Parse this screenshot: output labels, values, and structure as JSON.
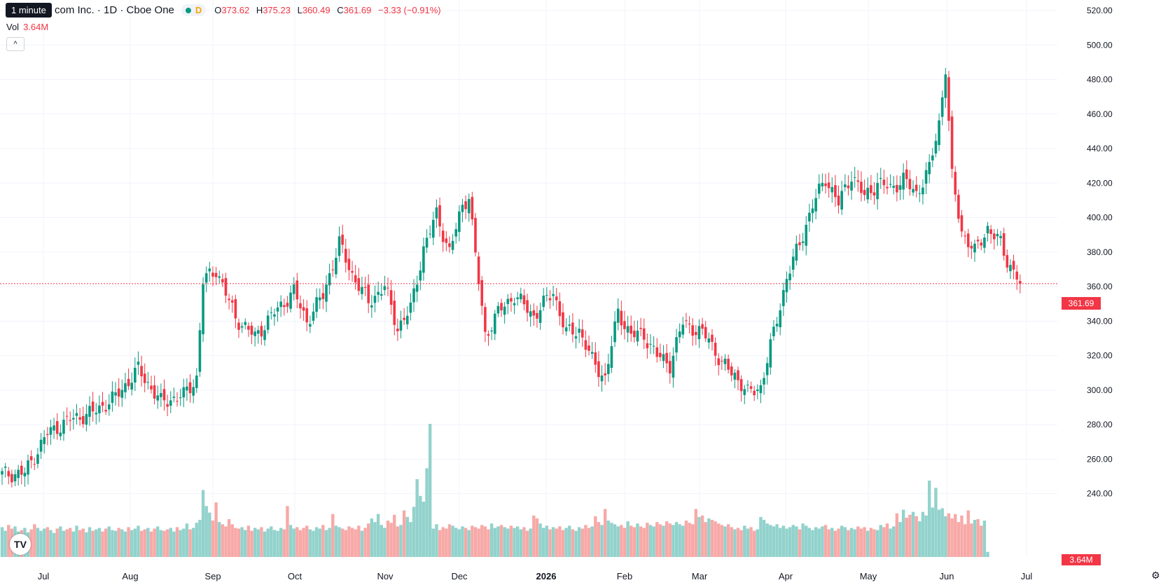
{
  "legend": {
    "symbol_title": "Broadcom Inc. · 1D · Cboe One",
    "symbol_visible": "com Inc. · 1D · Cboe One",
    "tooltip": "1 minute",
    "d_flag": "D",
    "open_label": "O",
    "open": "373.62",
    "high_label": "H",
    "high": "375.23",
    "low_label": "L",
    "low": "360.49",
    "close_label": "C",
    "close": "361.69",
    "change": "−3.33 (−0.91%)",
    "volume_label": "Vol",
    "volume": "3.64M",
    "collapse_glyph": "^"
  },
  "price_tag": "361.69",
  "volume_tag": "3.64M",
  "logo_text": "TV",
  "settings_icon": "gear-icon",
  "colors": {
    "up": "#089981",
    "down": "#f23645",
    "up_vol": "#92d2cc",
    "down_vol": "#f7a9a7",
    "grid": "#f0f3fa"
  },
  "chart_data": {
    "type": "candlestick",
    "y_ticks": [
      "520.00",
      "500.00",
      "480.00",
      "460.00",
      "440.00",
      "420.00",
      "400.00",
      "380.00",
      "360.00",
      "340.00",
      "320.00",
      "300.00",
      "280.00",
      "260.00",
      "240.00"
    ],
    "ylim": [
      226,
      522
    ],
    "x_ticks": [
      "Jul",
      "Aug",
      "Sep",
      "Oct",
      "Nov",
      "Dec",
      "2026",
      "Feb",
      "Mar",
      "Apr",
      "May",
      "Jun",
      "Jul"
    ],
    "last_price": 361.69,
    "anchors": [
      [
        0,
        251
      ],
      [
        7,
        252
      ],
      [
        14,
        275
      ],
      [
        21,
        283
      ],
      [
        28,
        287
      ],
      [
        35,
        296
      ],
      [
        42,
        312
      ],
      [
        49,
        293
      ],
      [
        56,
        297
      ],
      [
        60,
        307
      ],
      [
        62,
        363
      ],
      [
        66,
        370
      ],
      [
        72,
        342
      ],
      [
        78,
        331
      ],
      [
        84,
        345
      ],
      [
        90,
        357
      ],
      [
        94,
        340
      ],
      [
        99,
        355
      ],
      [
        104,
        385
      ],
      [
        108,
        367
      ],
      [
        113,
        351
      ],
      [
        118,
        360
      ],
      [
        122,
        336
      ],
      [
        126,
        347
      ],
      [
        130,
        382
      ],
      [
        134,
        402
      ],
      [
        138,
        380
      ],
      [
        142,
        407
      ],
      [
        144,
        413
      ],
      [
        146,
        378
      ],
      [
        149,
        332
      ],
      [
        153,
        345
      ],
      [
        158,
        355
      ],
      [
        164,
        343
      ],
      [
        170,
        357
      ],
      [
        174,
        333
      ],
      [
        178,
        335
      ],
      [
        182,
        317
      ],
      [
        186,
        307
      ],
      [
        190,
        345
      ],
      [
        194,
        332
      ],
      [
        198,
        332
      ],
      [
        202,
        320
      ],
      [
        206,
        315
      ],
      [
        210,
        339
      ],
      [
        214,
        335
      ],
      [
        218,
        330
      ],
      [
        222,
        315
      ],
      [
        226,
        309
      ],
      [
        230,
        298
      ],
      [
        234,
        302
      ],
      [
        238,
        333
      ],
      [
        242,
        365
      ],
      [
        246,
        385
      ],
      [
        250,
        407
      ],
      [
        254,
        423
      ],
      [
        258,
        408
      ],
      [
        262,
        425
      ],
      [
        266,
        412
      ],
      [
        270,
        420
      ],
      [
        274,
        417
      ],
      [
        278,
        422
      ],
      [
        282,
        414
      ],
      [
        286,
        428
      ],
      [
        289,
        455
      ],
      [
        291,
        487
      ],
      [
        293,
        423
      ],
      [
        296,
        392
      ],
      [
        300,
        380
      ],
      [
        304,
        394
      ],
      [
        308,
        385
      ],
      [
        310,
        375
      ],
      [
        313,
        366
      ],
      [
        314,
        362
      ]
    ],
    "volume_series": [
      4.1,
      3.6,
      4.4,
      3.9,
      4.2,
      3.5,
      3.7,
      4.0,
      3.4,
      3.8,
      4.5,
      4.0,
      3.6,
      3.9,
      4.1,
      3.7,
      3.3,
      3.9,
      4.2,
      3.6,
      3.8,
      4.0,
      3.5,
      4.3,
      3.7,
      3.9,
      3.4,
      4.1,
      3.6,
      3.8,
      4.0,
      3.5,
      3.9,
      4.2,
      3.7,
      3.6,
      4.0,
      3.8,
      3.5,
      4.1,
      3.7,
      3.9,
      4.3,
      3.6,
      3.8,
      4.0,
      3.5,
      3.9,
      4.2,
      3.7,
      3.6,
      3.8,
      4.0,
      3.5,
      4.1,
      3.7,
      3.9,
      4.6,
      3.8,
      4.0,
      4.7,
      5.1,
      9.2,
      7.0,
      6.1,
      5.0,
      7.5,
      4.8,
      4.5,
      4.2,
      5.2,
      4.5,
      4.0,
      3.9,
      4.1,
      3.7,
      4.3,
      3.6,
      4.0,
      3.8,
      4.1,
      3.5,
      3.9,
      4.2,
      3.7,
      3.6,
      4.0,
      3.8,
      7.0,
      4.4,
      3.9,
      4.1,
      3.7,
      4.0,
      4.3,
      3.8,
      3.6,
      4.1,
      3.9,
      4.4,
      3.7,
      4.0,
      5.9,
      4.3,
      4.1,
      3.9,
      3.7,
      4.2,
      4.0,
      3.8,
      4.3,
      3.6,
      4.0,
      4.6,
      5.3,
      4.8,
      5.9,
      4.4,
      4.0,
      5.0,
      4.7,
      5.8,
      4.2,
      4.4,
      6.4,
      5.5,
      4.8,
      6.9,
      10.7,
      8.4,
      7.6,
      12.2,
      18.3,
      3.9,
      4.5,
      3.7,
      4.1,
      3.9,
      4.5,
      4.3,
      4.0,
      3.8,
      4.2,
      4.0,
      3.7,
      4.3,
      4.1,
      3.9,
      4.4,
      4.2,
      3.8,
      4.6,
      4.0,
      4.2,
      4.4,
      4.1,
      3.9,
      4.3,
      4.0,
      4.2,
      3.8,
      4.1,
      3.6,
      3.9,
      5.7,
      5.3,
      4.6,
      4.0,
      4.3,
      3.8,
      4.1,
      3.9,
      4.2,
      3.7,
      4.0,
      4.3,
      3.8,
      3.6,
      4.1,
      3.9,
      4.4,
      4.0,
      4.2,
      5.6,
      4.8,
      4.4,
      6.6,
      5.0,
      4.7,
      4.5,
      4.2,
      4.4,
      4.0,
      4.9,
      4.3,
      4.1,
      4.6,
      4.2,
      4.0,
      4.7,
      4.4,
      4.2,
      4.8,
      4.5,
      4.3,
      4.9,
      4.6,
      4.4,
      4.8,
      4.5,
      4.3,
      5.0,
      4.7,
      4.5,
      6.6,
      5.5,
      5.7,
      4.8,
      5.3,
      5.1,
      4.9,
      4.6,
      4.4,
      4.2,
      4.5,
      4.1,
      3.8,
      4.0,
      3.7,
      4.3,
      3.9,
      4.1,
      3.6,
      3.8,
      5.5,
      5.1,
      4.6,
      4.4,
      4.2,
      4.5,
      4.0,
      4.3,
      3.9,
      4.1,
      4.4,
      4.2,
      3.8,
      4.6,
      4.3,
      4.0,
      3.7,
      4.1,
      3.9,
      4.2,
      4.4,
      3.8,
      4.0,
      3.6,
      3.9,
      4.3,
      4.1,
      3.7,
      4.0,
      3.8,
      4.2,
      3.9,
      4.1,
      3.6,
      4.0,
      3.8,
      3.7,
      4.4,
      4.1,
      4.6,
      3.9,
      4.2,
      6.0,
      4.8,
      6.5,
      5.4,
      5.8,
      6.2,
      5.6,
      4.9,
      6.2,
      5.7,
      10.5,
      6.8,
      9.5,
      6.5,
      6.7,
      5.6,
      6.0,
      5.3,
      5.9,
      4.8,
      5.7,
      4.5,
      6.4,
      4.6,
      5.1,
      5.2,
      4.3,
      5.0,
      0.7
    ]
  }
}
